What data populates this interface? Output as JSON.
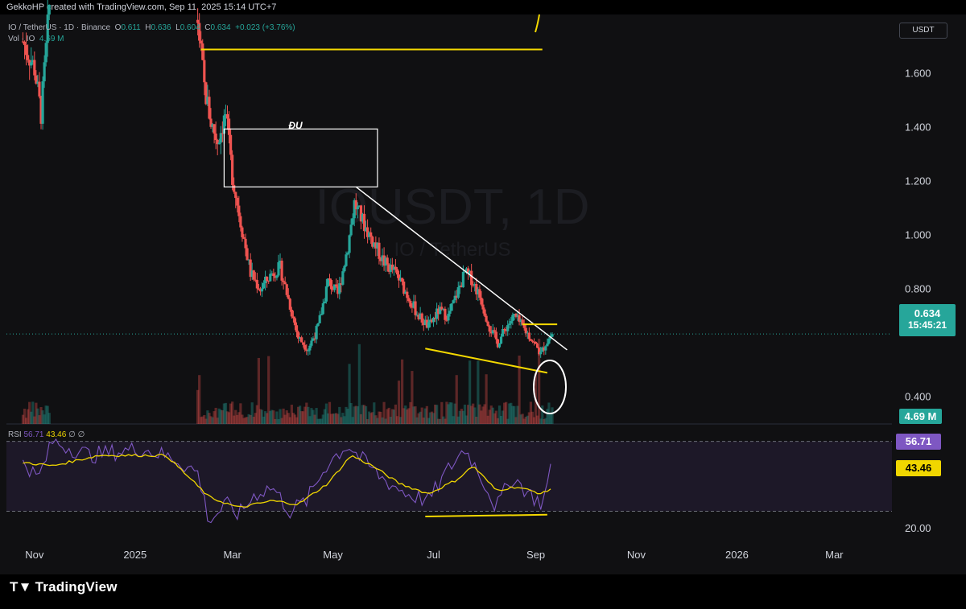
{
  "header": {
    "credit": "GekkoHP created with TradingView.com, Sep 11, 2025 15:14 UTC+7"
  },
  "legend": {
    "symbol_line": "IO / TetherUS · 1D · Binance",
    "open_label": "O",
    "open": "0.611",
    "high_label": "H",
    "high": "0.636",
    "low_label": "L",
    "low": "0.604",
    "close_label": "C",
    "close": "0.634",
    "change": "+0.023 (+3.76%)",
    "volume_line": "Vol · IO",
    "volume": "4.69 M"
  },
  "currency": "USDT",
  "watermark": {
    "main": "IOUSDT, 1D",
    "sub": "IO / TetherUS"
  },
  "annotation_label": "ĐU",
  "price_tag": {
    "price": "0.634",
    "countdown": "15:45:21"
  },
  "volume_tag": "4.69 M",
  "rsi": {
    "label": "RSI",
    "value": "56.71",
    "ma_value": "43.46",
    "extra": "∅ ∅",
    "tag_value": "56.71",
    "tag_ma": "43.46"
  },
  "brand": "TradingView",
  "colors": {
    "up": "#26a69a",
    "down": "#ef5350",
    "rsi": "#7e57c2",
    "rsi_ma": "#f0d600",
    "drawing_yellow": "#f5d900",
    "trendline": "#ffffff",
    "price_tag": "#26a69a"
  },
  "chart_data": {
    "type": "candlestick",
    "price_axis": {
      "ticks": [
        "1.600",
        "1.400",
        "1.200",
        "1.000",
        "0.800",
        "0.400"
      ],
      "tick_values": [
        1.6,
        1.4,
        1.2,
        1.0,
        0.8,
        0.4
      ],
      "range": [
        0.3,
        1.82
      ]
    },
    "rsi_axis": {
      "ticks": [
        "20.00"
      ],
      "tick_values": [
        20
      ],
      "range": [
        15,
        80
      ],
      "bands": [
        30,
        70
      ]
    },
    "x_axis": {
      "ticks": [
        "Nov",
        "2025",
        "Mar",
        "May",
        "Jul",
        "Sep",
        "Nov",
        "2026",
        "Mar"
      ]
    },
    "price_series": [
      {
        "d": "2024-10-25",
        "v": 1.72
      },
      {
        "d": "2024-11-01",
        "v": 1.62
      },
      {
        "d": "2024-11-05",
        "v": 1.45
      },
      {
        "d": "2024-11-10",
        "v": 1.85
      },
      {
        "d": "2025-02-08",
        "v": 1.8
      },
      {
        "d": "2025-02-12",
        "v": 1.55
      },
      {
        "d": "2025-02-16",
        "v": 1.42
      },
      {
        "d": "2025-02-20",
        "v": 1.35
      },
      {
        "d": "2025-02-25",
        "v": 1.45
      },
      {
        "d": "2025-03-01",
        "v": 1.22
      },
      {
        "d": "2025-03-06",
        "v": 1.05
      },
      {
        "d": "2025-03-12",
        "v": 0.86
      },
      {
        "d": "2025-03-18",
        "v": 0.8
      },
      {
        "d": "2025-03-25",
        "v": 0.86
      },
      {
        "d": "2025-03-30",
        "v": 0.88
      },
      {
        "d": "2025-04-05",
        "v": 0.74
      },
      {
        "d": "2025-04-10",
        "v": 0.62
      },
      {
        "d": "2025-04-16",
        "v": 0.58
      },
      {
        "d": "2025-04-22",
        "v": 0.66
      },
      {
        "d": "2025-04-28",
        "v": 0.83
      },
      {
        "d": "2025-05-04",
        "v": 0.78
      },
      {
        "d": "2025-05-10",
        "v": 0.96
      },
      {
        "d": "2025-05-14",
        "v": 1.12
      },
      {
        "d": "2025-05-20",
        "v": 1.04
      },
      {
        "d": "2025-05-25",
        "v": 0.98
      },
      {
        "d": "2025-06-01",
        "v": 0.9
      },
      {
        "d": "2025-06-08",
        "v": 0.86
      },
      {
        "d": "2025-06-15",
        "v": 0.78
      },
      {
        "d": "2025-06-22",
        "v": 0.7
      },
      {
        "d": "2025-06-28",
        "v": 0.66
      },
      {
        "d": "2025-07-04",
        "v": 0.72
      },
      {
        "d": "2025-07-10",
        "v": 0.7
      },
      {
        "d": "2025-07-15",
        "v": 0.78
      },
      {
        "d": "2025-07-20",
        "v": 0.86
      },
      {
        "d": "2025-07-24",
        "v": 0.84
      },
      {
        "d": "2025-07-30",
        "v": 0.76
      },
      {
        "d": "2025-08-04",
        "v": 0.66
      },
      {
        "d": "2025-08-09",
        "v": 0.6
      },
      {
        "d": "2025-08-14",
        "v": 0.66
      },
      {
        "d": "2025-08-19",
        "v": 0.7
      },
      {
        "d": "2025-08-24",
        "v": 0.66
      },
      {
        "d": "2025-08-29",
        "v": 0.62
      },
      {
        "d": "2025-09-04",
        "v": 0.56
      },
      {
        "d": "2025-09-07",
        "v": 0.6
      },
      {
        "d": "2025-09-11",
        "v": 0.634
      }
    ],
    "rsi_series": [
      {
        "d": "2024-10-25",
        "v": 60
      },
      {
        "d": "2024-11-03",
        "v": 48
      },
      {
        "d": "2024-11-12",
        "v": 70
      },
      {
        "d": "2024-12-05",
        "v": 62
      },
      {
        "d": "2025-01-05",
        "v": 66
      },
      {
        "d": "2025-01-25",
        "v": 60
      },
      {
        "d": "2025-02-08",
        "v": 52
      },
      {
        "d": "2025-02-15",
        "v": 24
      },
      {
        "d": "2025-02-25",
        "v": 34
      },
      {
        "d": "2025-03-05",
        "v": 28
      },
      {
        "d": "2025-03-15",
        "v": 40
      },
      {
        "d": "2025-03-25",
        "v": 44
      },
      {
        "d": "2025-04-05",
        "v": 30
      },
      {
        "d": "2025-04-15",
        "v": 36
      },
      {
        "d": "2025-04-28",
        "v": 58
      },
      {
        "d": "2025-05-10",
        "v": 68
      },
      {
        "d": "2025-05-18",
        "v": 60
      },
      {
        "d": "2025-06-01",
        "v": 48
      },
      {
        "d": "2025-06-15",
        "v": 40
      },
      {
        "d": "2025-06-28",
        "v": 36
      },
      {
        "d": "2025-07-10",
        "v": 54
      },
      {
        "d": "2025-07-20",
        "v": 66
      },
      {
        "d": "2025-07-30",
        "v": 50
      },
      {
        "d": "2025-08-08",
        "v": 32
      },
      {
        "d": "2025-08-18",
        "v": 50
      },
      {
        "d": "2025-08-28",
        "v": 40
      },
      {
        "d": "2025-09-05",
        "v": 34
      },
      {
        "d": "2025-09-11",
        "v": 56.71
      }
    ],
    "rsi_ma_series": [
      {
        "d": "2024-10-25",
        "v": 58
      },
      {
        "d": "2024-11-12",
        "v": 56
      },
      {
        "d": "2024-12-10",
        "v": 62
      },
      {
        "d": "2025-01-20",
        "v": 62
      },
      {
        "d": "2025-02-15",
        "v": 38
      },
      {
        "d": "2025-03-05",
        "v": 32
      },
      {
        "d": "2025-03-25",
        "v": 36
      },
      {
        "d": "2025-04-10",
        "v": 34
      },
      {
        "d": "2025-04-28",
        "v": 46
      },
      {
        "d": "2025-05-12",
        "v": 62
      },
      {
        "d": "2025-05-25",
        "v": 56
      },
      {
        "d": "2025-06-10",
        "v": 46
      },
      {
        "d": "2025-06-28",
        "v": 40
      },
      {
        "d": "2025-07-15",
        "v": 48
      },
      {
        "d": "2025-07-25",
        "v": 56
      },
      {
        "d": "2025-08-08",
        "v": 42
      },
      {
        "d": "2025-08-20",
        "v": 44
      },
      {
        "d": "2025-09-05",
        "v": 40
      },
      {
        "d": "2025-09-11",
        "v": 43.46
      }
    ],
    "drawings": [
      {
        "kind": "horizontal",
        "from": "2025-02-10",
        "to": "2025-09-05",
        "price": 1.69
      },
      {
        "kind": "box",
        "from": "2025-02-24",
        "to": "2025-05-28",
        "price_top": 1.395,
        "price_bottom": 1.18
      },
      {
        "kind": "trendline",
        "from": "2025-05-15",
        "to": "2025-09-20",
        "price_from": 1.18,
        "price_to": 0.575
      },
      {
        "kind": "support",
        "from": "2025-06-26",
        "to": "2025-09-08",
        "price_from": 0.58,
        "price_to": 0.49
      },
      {
        "kind": "resistance",
        "from": "2025-08-24",
        "to": "2025-09-14",
        "price": 0.67
      }
    ],
    "rsi_drawings": [
      {
        "kind": "support",
        "from": "2025-06-26",
        "to": "2025-09-08",
        "rsi_from": 27,
        "rsi_to": 28
      }
    ]
  }
}
